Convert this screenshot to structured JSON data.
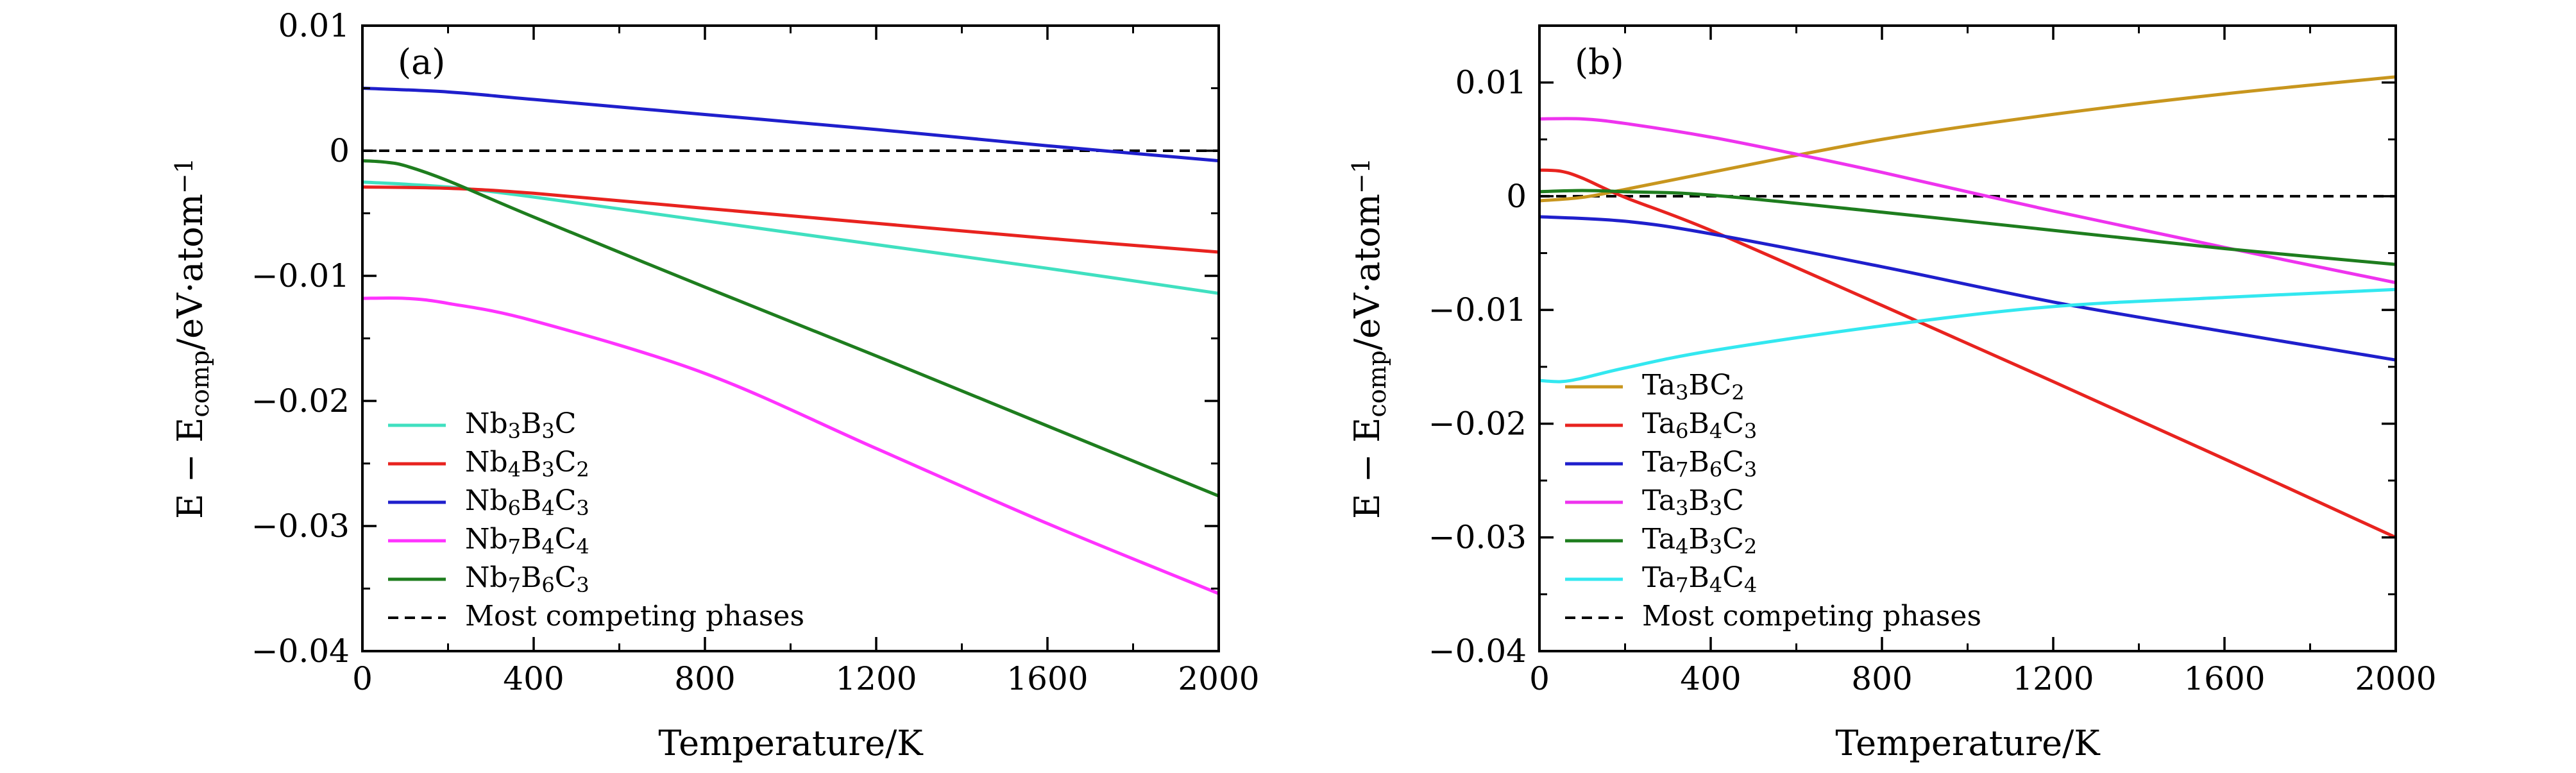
{
  "chart_data": [
    {
      "type": "line",
      "panel_label": "(a)",
      "xlabel": "Temperature/K",
      "ylabel": "E − E_comp/eV·atom^−1",
      "xlim": [
        0,
        2000
      ],
      "ylim": [
        -0.04,
        0.01
      ],
      "xticks": [
        0,
        400,
        800,
        1200,
        1600,
        2000
      ],
      "yticks": [
        -0.04,
        -0.03,
        -0.02,
        -0.01,
        0,
        0.01
      ],
      "xtick_labels": [
        "0",
        "400",
        "800",
        "1200",
        "1600",
        "2000"
      ],
      "ytick_labels": [
        "−0.04",
        "−0.03",
        "−0.02",
        "−0.01",
        "0",
        "0.01"
      ],
      "legend_position": "lower-left",
      "series": [
        {
          "name": "Nb3B3C",
          "color": "#40e0c0",
          "x": [
            0,
            200,
            400,
            800,
            1200,
            1600,
            2000
          ],
          "y": [
            -0.0025,
            -0.0029,
            -0.0037,
            -0.0056,
            -0.0075,
            -0.0094,
            -0.0114
          ]
        },
        {
          "name": "Nb4B3C2",
          "color": "#e8231f",
          "x": [
            0,
            200,
            400,
            800,
            1200,
            1600,
            2000
          ],
          "y": [
            -0.0029,
            -0.003,
            -0.0034,
            -0.0046,
            -0.0058,
            -0.007,
            -0.0081
          ]
        },
        {
          "name": "Nb6B4C3",
          "color": "#1f1fcc",
          "x": [
            0,
            200,
            400,
            800,
            1200,
            1600,
            2000
          ],
          "y": [
            0.005,
            0.0047,
            0.0041,
            0.0029,
            0.0017,
            0.0004,
            -0.0008
          ]
        },
        {
          "name": "Nb7B4C4",
          "color": "#ff33ff",
          "x": [
            0,
            100,
            200,
            400,
            800,
            1200,
            1600,
            2000
          ],
          "y": [
            -0.0118,
            -0.0118,
            -0.0122,
            -0.0136,
            -0.0178,
            -0.0238,
            -0.0298,
            -0.0354
          ]
        },
        {
          "name": "Nb7B6C3",
          "color": "#1e7d1e",
          "x": [
            0,
            50,
            100,
            200,
            400,
            800,
            1200,
            1600,
            2000
          ],
          "y": [
            -0.0008,
            -0.0009,
            -0.0012,
            -0.0024,
            -0.0053,
            -0.0109,
            -0.0164,
            -0.022,
            -0.0276
          ]
        }
      ],
      "reference_line": {
        "name": "Most competing phases",
        "y": 0,
        "style": "dashed",
        "color": "#000000"
      }
    },
    {
      "type": "line",
      "panel_label": "(b)",
      "xlabel": "Temperature/K",
      "ylabel": "E − E_comp/eV·atom^−1",
      "xlim": [
        0,
        2000
      ],
      "ylim": [
        -0.04,
        0.015
      ],
      "xticks": [
        0,
        400,
        800,
        1200,
        1600,
        2000
      ],
      "yticks": [
        -0.04,
        -0.03,
        -0.02,
        -0.01,
        0,
        0.01
      ],
      "xtick_labels": [
        "0",
        "400",
        "800",
        "1200",
        "1600",
        "2000"
      ],
      "ytick_labels": [
        "−0.04",
        "−0.03",
        "−0.02",
        "−0.01",
        "0",
        "0.01"
      ],
      "legend_position": "lower-left",
      "series": [
        {
          "name": "Ta3BC2",
          "color": "#c8961e",
          "x": [
            0,
            100,
            200,
            400,
            800,
            1200,
            1600,
            2000
          ],
          "y": [
            -0.0004,
            -0.0001,
            0.0006,
            0.0021,
            0.005,
            0.0072,
            0.009,
            0.0105
          ]
        },
        {
          "name": "Ta6B4C3",
          "color": "#e8231f",
          "x": [
            0,
            50,
            100,
            200,
            400,
            800,
            1200,
            1600,
            2000
          ],
          "y": [
            0.0023,
            0.0022,
            0.0016,
            -0.0001,
            -0.003,
            -0.0096,
            -0.0163,
            -0.0231,
            -0.03
          ]
        },
        {
          "name": "Ta7B6C3",
          "color": "#1f1fcc",
          "x": [
            0,
            200,
            400,
            800,
            1200,
            1600,
            2000
          ],
          "y": [
            -0.0018,
            -0.0022,
            -0.0033,
            -0.0062,
            -0.0093,
            -0.0119,
            -0.0144
          ]
        },
        {
          "name": "Ta3B3C",
          "color": "#ee33ee",
          "x": [
            0,
            100,
            200,
            400,
            600,
            800,
            1200,
            1600,
            2000
          ],
          "y": [
            0.0068,
            0.0068,
            0.0064,
            0.0052,
            0.0037,
            0.0021,
            -0.0013,
            -0.0045,
            -0.0076
          ]
        },
        {
          "name": "Ta4B3C2",
          "color": "#1e7d1e",
          "x": [
            0,
            100,
            200,
            400,
            800,
            1200,
            1600,
            2000
          ],
          "y": [
            0.0004,
            0.0005,
            0.0004,
            0.0001,
            -0.0014,
            -0.003,
            -0.0046,
            -0.006
          ]
        },
        {
          "name": "Ta7B4C4",
          "color": "#33e8f0",
          "x": [
            0,
            50,
            100,
            200,
            400,
            800,
            1200,
            1600,
            2000
          ],
          "y": [
            -0.0162,
            -0.0163,
            -0.016,
            -0.0151,
            -0.0136,
            -0.0114,
            -0.0097,
            -0.0089,
            -0.0082
          ]
        }
      ],
      "reference_line": {
        "name": "Most competing phases",
        "y": 0,
        "style": "dashed",
        "color": "#000000"
      }
    }
  ]
}
